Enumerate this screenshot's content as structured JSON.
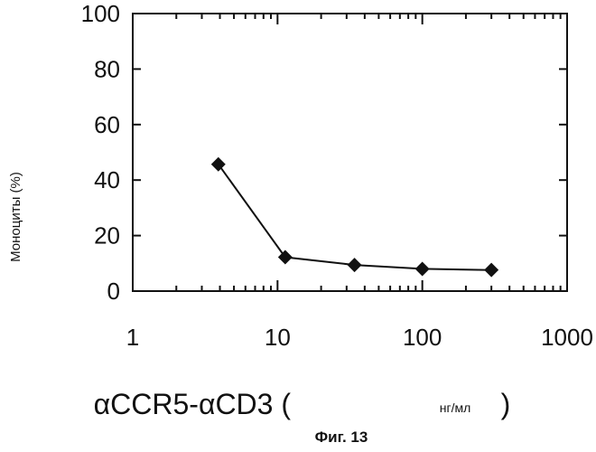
{
  "chart_data": {
    "type": "line",
    "x_scale": "log",
    "xlim": [
      1,
      1000
    ],
    "ylim": [
      0,
      100
    ],
    "x_ticks": [
      "1",
      "10",
      "100",
      "1000"
    ],
    "y_ticks": [
      "0",
      "20",
      "40",
      "60",
      "80",
      "100"
    ],
    "ylabel": "Моноциты (%)",
    "xlabel_prefix": "αCCR5-αCD3 (",
    "xlabel_unit": "нг/мл",
    "xlabel_suffix": ")",
    "caption": "Фиг. 13",
    "grid": false,
    "marker": "diamond",
    "line_color": "#111111",
    "series": [
      {
        "x": [
          3.9,
          11.3,
          34,
          100,
          300
        ],
        "y": [
          45.7,
          12.2,
          9.4,
          8.0,
          7.6
        ]
      }
    ]
  }
}
